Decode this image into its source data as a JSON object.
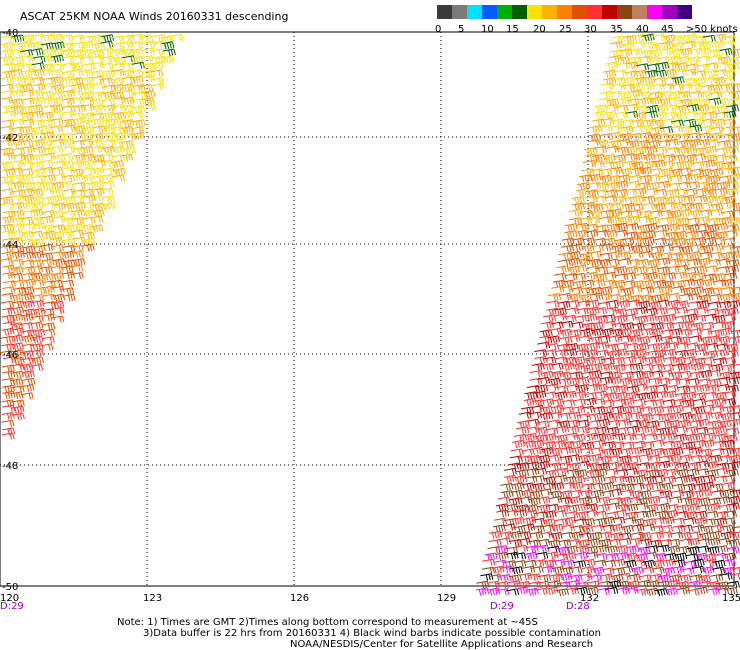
{
  "title": "ASCAT 25KM NOAA Winds 20160331 descending",
  "scale": {
    "labels": [
      "0",
      "5",
      "10",
      "15",
      "20",
      "25",
      "30",
      "35",
      "40",
      "45",
      ">50 knots"
    ],
    "colors": [
      "#3a3a3a",
      "#7a7a7a",
      "#00e0ff",
      "#0060ff",
      "#00b000",
      "#006000",
      "#ffe000",
      "#ffb000",
      "#ff7f00",
      "#e05000",
      "#ff3030",
      "#c00000",
      "#8b4513",
      "#c08060",
      "#ff00ff",
      "#a000c0",
      "#400080"
    ]
  },
  "map": {
    "lat_labels": [
      "-40",
      "-42",
      "-44",
      "-46",
      "-48",
      "-50"
    ],
    "lon_labels": [
      "120",
      "123",
      "126",
      "129",
      "132",
      "135"
    ],
    "pass_times": [
      "D:29",
      "D:29",
      "D:28"
    ],
    "pass_color": "#a000c0"
  },
  "notes": {
    "line1": "Note: 1) Times are GMT 2)Times along bottom correspond to measurement at ~45S",
    "line2": "3)Data buffer is 22 hrs from 20160331 4) Black wind barbs indicate possible contamination",
    "line3": "NOAA/NESDIS/Center for Satellite Applications and Research"
  }
}
